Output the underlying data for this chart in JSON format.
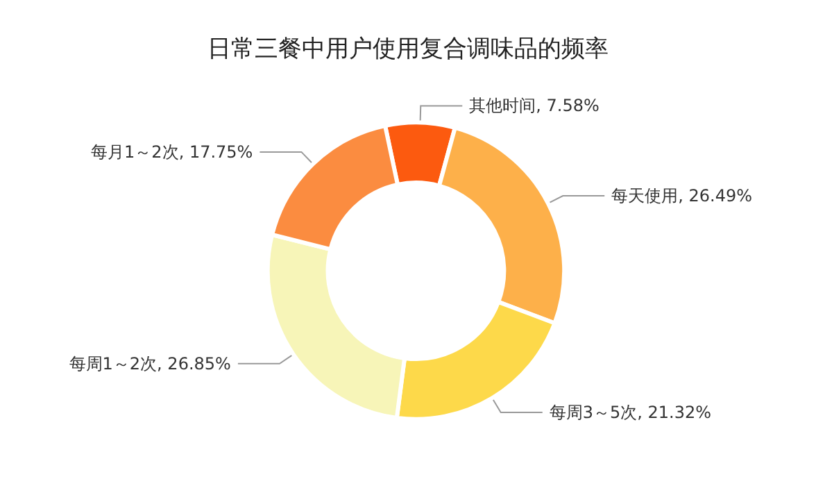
{
  "chart_data": {
    "type": "donut",
    "title": "日常三餐中用户使用复合调味品的频率",
    "categories": [
      "其他时间",
      "每天使用",
      "每周3～5次",
      "每周1～2次",
      "每月1～2次"
    ],
    "values": [
      7.58,
      26.49,
      21.32,
      26.85,
      17.75
    ],
    "colors": [
      "#fc5a0f",
      "#fdb04a",
      "#fdd94a",
      "#f7f5b8",
      "#fb8c40"
    ],
    "value_labels": [
      ", 7.58%",
      ", 26.49%",
      ", 21.32%",
      ", 26.85%",
      ", 17.75%"
    ],
    "legend": false
  }
}
